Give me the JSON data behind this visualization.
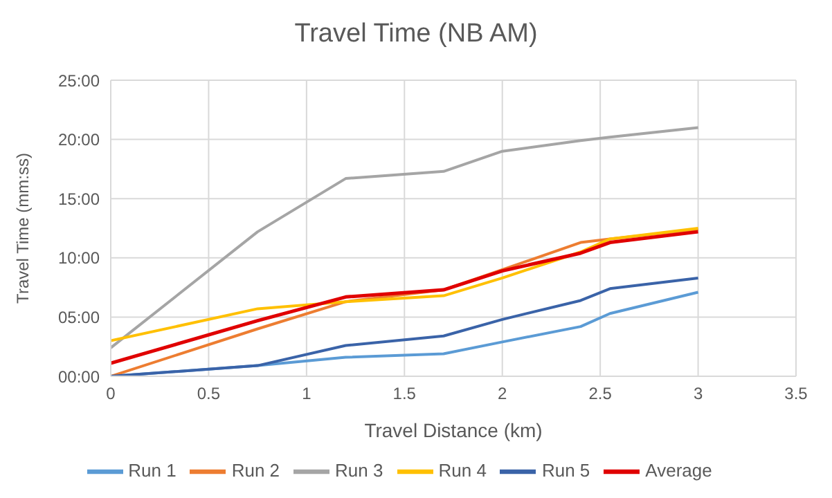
{
  "chart_data": {
    "type": "line",
    "title": "Travel Time (NB AM)",
    "xlabel": "Travel Distance (km)",
    "ylabel": "Travel Time (mm:ss)",
    "x": [
      0,
      0.75,
      1.2,
      1.7,
      2.0,
      2.4,
      2.55,
      3.0
    ],
    "series": [
      {
        "name": "Run 1",
        "color": "#5b9bd5",
        "values": [
          0,
          0.9,
          1.6,
          1.9,
          2.9,
          4.2,
          5.3,
          7.1
        ]
      },
      {
        "name": "Run 2",
        "color": "#ed7d31",
        "values": [
          0,
          4.0,
          6.3,
          7.3,
          9.0,
          11.3,
          11.6,
          12.4
        ]
      },
      {
        "name": "Run 3",
        "color": "#a5a5a5",
        "values": [
          2.4,
          12.2,
          16.7,
          17.3,
          19.0,
          19.9,
          20.2,
          21.0
        ]
      },
      {
        "name": "Run 4",
        "color": "#ffc000",
        "values": [
          3.0,
          5.7,
          6.3,
          6.8,
          8.3,
          10.5,
          11.6,
          12.5
        ]
      },
      {
        "name": "Run 5",
        "color": "#3a63a8",
        "values": [
          0,
          0.9,
          2.6,
          3.4,
          4.8,
          6.4,
          7.4,
          8.3
        ]
      },
      {
        "name": "Average",
        "color": "#e00000",
        "values": [
          1.1,
          4.7,
          6.7,
          7.3,
          8.9,
          10.4,
          11.3,
          12.2
        ]
      }
    ],
    "xlim": [
      0,
      3.5
    ],
    "xticks": [
      0,
      0.5,
      1,
      1.5,
      2,
      2.5,
      3,
      3.5
    ],
    "ylim": [
      0,
      25
    ],
    "yticks": [
      {
        "value": 0,
        "label": "00:00"
      },
      {
        "value": 5,
        "label": "05:00"
      },
      {
        "value": 10,
        "label": "10:00"
      },
      {
        "value": 15,
        "label": "15:00"
      },
      {
        "value": 20,
        "label": "20:00"
      },
      {
        "value": 25,
        "label": "25:00"
      }
    ],
    "grid": true,
    "legend": "bottom",
    "marker": "none",
    "line_style": "solid"
  }
}
